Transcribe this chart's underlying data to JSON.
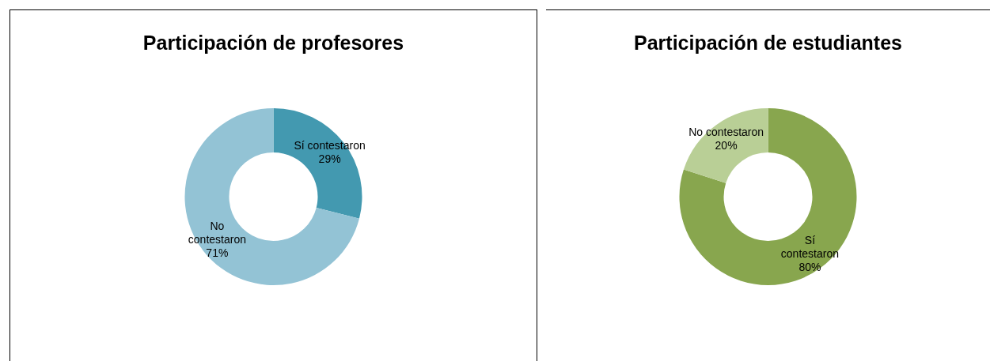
{
  "chart_data": [
    {
      "type": "donut",
      "title": "Participación de profesores",
      "categories": [
        "Sí contestaron",
        "No contestaron"
      ],
      "values": [
        29,
        71
      ],
      "colors": [
        "#4399b0",
        "#93c3d5"
      ],
      "value_labels": [
        "29%",
        "71%"
      ],
      "legend": false
    },
    {
      "type": "donut",
      "title": "Participación de estudiantes",
      "categories": [
        "Sí contestaron",
        "No contestaron"
      ],
      "values": [
        80,
        20
      ],
      "colors": [
        "#88a64e",
        "#b9cf96"
      ],
      "value_labels": [
        "80%",
        "20%"
      ],
      "legend": false
    }
  ]
}
